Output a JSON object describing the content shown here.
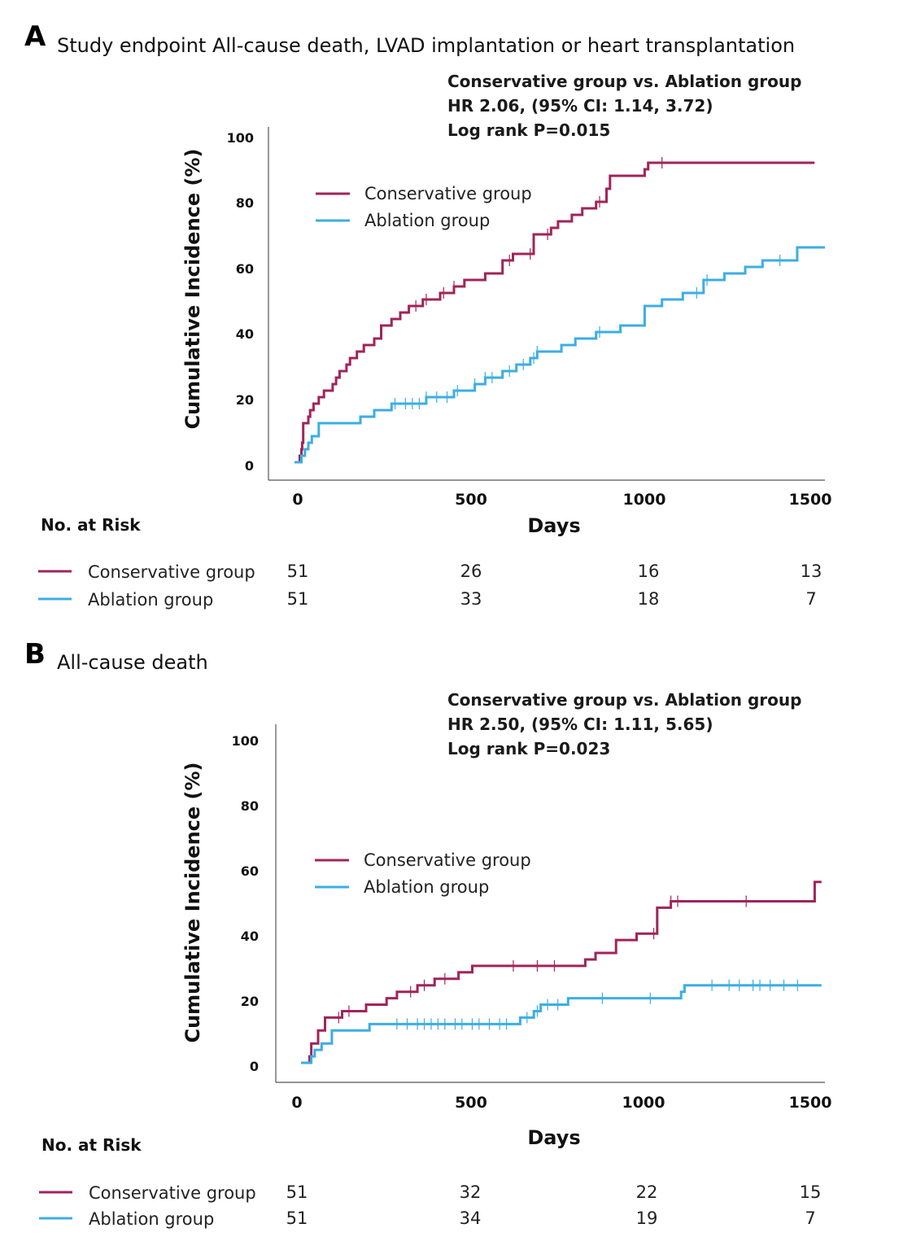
{
  "colors": {
    "conservative": "#A0245A",
    "ablation": "#3BAEE4"
  },
  "chart_data": [
    {
      "type": "line",
      "step": true,
      "panel_letter": "A",
      "title": "Study endpoint All-cause death, LVAD implantation or heart transplantation",
      "stats": [
        "Conservative group vs. Ablation group",
        "HR 2.06, (95% CI: 1.14, 3.72)",
        "Log rank P=0.015"
      ],
      "xlabel": "Days",
      "ylabel": "Cumulative Incidence (%)",
      "xlim": [
        0,
        1530
      ],
      "ylim": [
        0,
        100
      ],
      "xticks": [
        0,
        500,
        1000,
        1500
      ],
      "yticks": [
        0,
        20,
        40,
        60,
        80,
        100
      ],
      "series": [
        {
          "name": "Conservative group",
          "color_key": "conservative",
          "steps": [
            [
              0,
              0
            ],
            [
              15,
              2
            ],
            [
              20,
              4
            ],
            [
              22,
              6
            ],
            [
              25,
              12
            ],
            [
              40,
              14
            ],
            [
              45,
              16
            ],
            [
              55,
              18
            ],
            [
              70,
              20
            ],
            [
              85,
              22
            ],
            [
              110,
              24
            ],
            [
              120,
              26
            ],
            [
              130,
              28
            ],
            [
              150,
              30
            ],
            [
              160,
              32
            ],
            [
              180,
              34
            ],
            [
              200,
              36
            ],
            [
              230,
              38
            ],
            [
              250,
              42
            ],
            [
              280,
              44
            ],
            [
              305,
              46
            ],
            [
              330,
              48
            ],
            [
              370,
              50
            ],
            [
              420,
              52
            ],
            [
              460,
              54
            ],
            [
              490,
              56
            ],
            [
              550,
              58
            ],
            [
              600,
              62
            ],
            [
              630,
              64
            ],
            [
              690,
              70
            ],
            [
              740,
              72
            ],
            [
              760,
              74
            ],
            [
              800,
              76
            ],
            [
              830,
              78
            ],
            [
              870,
              80
            ],
            [
              900,
              84
            ],
            [
              910,
              88
            ],
            [
              1010,
              90
            ],
            [
              1020,
              92
            ],
            [
              1500,
              92
            ]
          ],
          "censor": [
            350,
            380,
            430,
            460,
            620,
            680,
            730,
            880,
            1060
          ]
        },
        {
          "name": "Ablation group",
          "color_key": "ablation",
          "steps": [
            [
              0,
              0
            ],
            [
              20,
              2
            ],
            [
              30,
              4
            ],
            [
              40,
              6
            ],
            [
              50,
              8
            ],
            [
              70,
              12
            ],
            [
              190,
              14
            ],
            [
              230,
              16
            ],
            [
              280,
              18
            ],
            [
              380,
              20
            ],
            [
              460,
              22
            ],
            [
              520,
              24
            ],
            [
              550,
              26
            ],
            [
              600,
              28
            ],
            [
              640,
              30
            ],
            [
              680,
              32
            ],
            [
              700,
              34
            ],
            [
              770,
              36
            ],
            [
              810,
              38
            ],
            [
              870,
              40
            ],
            [
              940,
              42
            ],
            [
              1010,
              48
            ],
            [
              1060,
              50
            ],
            [
              1120,
              52
            ],
            [
              1180,
              56
            ],
            [
              1240,
              58
            ],
            [
              1300,
              60
            ],
            [
              1350,
              62
            ],
            [
              1450,
              66
            ],
            [
              1530,
              66
            ]
          ],
          "censor": [
            290,
            320,
            340,
            360,
            380,
            410,
            440,
            470,
            520,
            550,
            570,
            620,
            660,
            690,
            700,
            880,
            1160,
            1190,
            1400
          ]
        }
      ],
      "legend": [
        "Conservative group",
        "Ablation group"
      ],
      "risk_table": {
        "title": "No. at Risk",
        "times": [
          0,
          500,
          1000,
          1500
        ],
        "rows": [
          {
            "name": "Conservative group",
            "color_key": "conservative",
            "values": [
              "51",
              "26",
              "16",
              "13"
            ]
          },
          {
            "name": "Ablation group",
            "color_key": "ablation",
            "values": [
              "51",
              "33",
              "18",
              "7"
            ]
          }
        ]
      }
    },
    {
      "type": "line",
      "step": true,
      "panel_letter": "B",
      "title": "All-cause death",
      "stats": [
        "Conservative group vs. Ablation group",
        "HR 2.50, (95% CI: 1.11, 5.65)",
        "Log rank P=0.023"
      ],
      "xlabel": "Days",
      "ylabel": "Cumulative Incidence (%)",
      "xlim": [
        0,
        1530
      ],
      "ylim": [
        0,
        100
      ],
      "xticks": [
        0,
        500,
        1000,
        1500
      ],
      "yticks": [
        0,
        20,
        40,
        60,
        80,
        100
      ],
      "series": [
        {
          "name": "Conservative group",
          "color_key": "conservative",
          "steps": [
            [
              0,
              0
            ],
            [
              25,
              2
            ],
            [
              30,
              6
            ],
            [
              50,
              10
            ],
            [
              70,
              14
            ],
            [
              120,
              16
            ],
            [
              190,
              18
            ],
            [
              250,
              20
            ],
            [
              280,
              22
            ],
            [
              340,
              24
            ],
            [
              390,
              26
            ],
            [
              460,
              28
            ],
            [
              500,
              30
            ],
            [
              830,
              32
            ],
            [
              860,
              34
            ],
            [
              920,
              38
            ],
            [
              980,
              40
            ],
            [
              1040,
              48
            ],
            [
              1080,
              50
            ],
            [
              1500,
              56
            ],
            [
              1520,
              56
            ]
          ],
          "censor": [
            110,
            140,
            320,
            360,
            420,
            620,
            690,
            740,
            1030,
            1080,
            1100,
            1300
          ]
        },
        {
          "name": "Ablation group",
          "color_key": "ablation",
          "steps": [
            [
              0,
              0
            ],
            [
              30,
              2
            ],
            [
              40,
              4
            ],
            [
              60,
              6
            ],
            [
              90,
              10
            ],
            [
              200,
              12
            ],
            [
              640,
              14
            ],
            [
              680,
              16
            ],
            [
              700,
              18
            ],
            [
              780,
              20
            ],
            [
              1110,
              22
            ],
            [
              1120,
              24
            ],
            [
              1520,
              24
            ]
          ],
          "censor": [
            280,
            310,
            340,
            360,
            380,
            400,
            420,
            450,
            470,
            500,
            520,
            550,
            580,
            600,
            660,
            690,
            720,
            750,
            880,
            1020,
            1200,
            1250,
            1280,
            1320,
            1340,
            1370,
            1410,
            1450
          ]
        }
      ],
      "legend": [
        "Conservative group",
        "Ablation group"
      ],
      "risk_table": {
        "title": "No. at Risk",
        "times": [
          0,
          500,
          1000,
          1500
        ],
        "rows": [
          {
            "name": "Conservative group",
            "color_key": "conservative",
            "values": [
              "51",
              "32",
              "22",
              "15"
            ]
          },
          {
            "name": "Ablation group",
            "color_key": "ablation",
            "values": [
              "51",
              "34",
              "19",
              "7"
            ]
          }
        ]
      }
    }
  ]
}
